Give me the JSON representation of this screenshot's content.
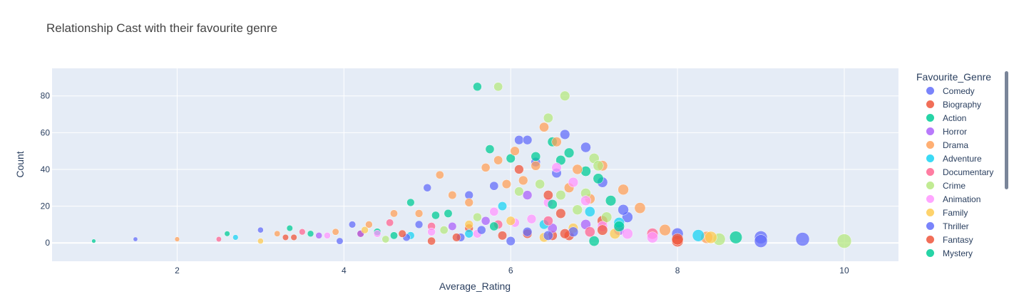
{
  "chart_data": {
    "type": "scatter",
    "title": "Relationship Cast with their favourite genre",
    "xlabel": "Average_Rating",
    "ylabel": "Count",
    "xlim": [
      0.5,
      10.65
    ],
    "ylim": [
      -10,
      95
    ],
    "xticks": [
      2,
      4,
      6,
      8,
      10
    ],
    "yticks": [
      0,
      20,
      40,
      60,
      80
    ],
    "grid": true,
    "legend": {
      "title": "Favourite_Genre",
      "placement": "right"
    },
    "marker_size_encodes": "Average_Rating",
    "series": [
      {
        "name": "Comedy",
        "color": "#636efa",
        "points": [
          [
            1.5,
            2
          ],
          [
            3,
            7
          ],
          [
            4.1,
            10
          ],
          [
            4.9,
            10
          ],
          [
            5,
            30
          ],
          [
            5.5,
            26
          ],
          [
            5.8,
            31
          ],
          [
            6.1,
            56
          ],
          [
            6.2,
            56
          ],
          [
            6.3,
            44
          ],
          [
            6.55,
            38
          ],
          [
            6.65,
            59
          ],
          [
            6.9,
            52
          ],
          [
            7.1,
            33
          ],
          [
            7.4,
            14
          ],
          [
            8,
            5
          ],
          [
            9,
            3
          ]
        ]
      },
      {
        "name": "Biography",
        "color": "#EF553B",
        "points": [
          [
            3.3,
            3
          ],
          [
            4.2,
            5
          ],
          [
            5.05,
            1
          ],
          [
            5.5,
            8
          ],
          [
            5.9,
            4
          ],
          [
            6.2,
            5
          ],
          [
            6.5,
            4
          ],
          [
            6.6,
            16
          ],
          [
            6.7,
            4
          ],
          [
            7.1,
            12
          ],
          [
            8,
            1
          ]
        ]
      },
      {
        "name": "Action",
        "color": "#00cc96",
        "points": [
          [
            1,
            1
          ],
          [
            2.6,
            5
          ],
          [
            3.6,
            5
          ],
          [
            4.4,
            6
          ],
          [
            4.8,
            22
          ],
          [
            5.1,
            15
          ],
          [
            5.6,
            85
          ],
          [
            5.75,
            51
          ],
          [
            6,
            46
          ],
          [
            6.3,
            47
          ],
          [
            6.5,
            55
          ],
          [
            6.6,
            45
          ],
          [
            6.7,
            49
          ],
          [
            6.9,
            39
          ],
          [
            7.0,
            1
          ],
          [
            7.2,
            23
          ]
        ]
      },
      {
        "name": "Horror",
        "color": "#ab63fa",
        "points": [
          [
            3.7,
            4
          ],
          [
            4.2,
            5
          ],
          [
            5.3,
            9
          ],
          [
            5.7,
            12
          ],
          [
            6.2,
            26
          ],
          [
            6.5,
            8
          ],
          [
            6.9,
            10
          ],
          [
            7.3,
            7
          ]
        ]
      },
      {
        "name": "Drama",
        "color": "#FFA15A",
        "points": [
          [
            2,
            2
          ],
          [
            3.2,
            5
          ],
          [
            3.9,
            6
          ],
          [
            4.3,
            10
          ],
          [
            4.6,
            16
          ],
          [
            4.9,
            16
          ],
          [
            5.15,
            37
          ],
          [
            5.3,
            26
          ],
          [
            5.5,
            22
          ],
          [
            5.7,
            41
          ],
          [
            5.85,
            45
          ],
          [
            5.95,
            32
          ],
          [
            6.05,
            50
          ],
          [
            6.15,
            34
          ],
          [
            6.3,
            42
          ],
          [
            6.4,
            63
          ],
          [
            6.55,
            55
          ],
          [
            6.7,
            30
          ],
          [
            6.8,
            40
          ],
          [
            6.95,
            24
          ],
          [
            7.1,
            42
          ],
          [
            7.35,
            29
          ],
          [
            7.55,
            19
          ],
          [
            7.85,
            7
          ],
          [
            8.35,
            3
          ]
        ]
      },
      {
        "name": "Adventure",
        "color": "#19d3f3",
        "points": [
          [
            2.7,
            3
          ],
          [
            4.8,
            4
          ],
          [
            5.5,
            5
          ],
          [
            5.9,
            20
          ],
          [
            6.4,
            10
          ],
          [
            6.95,
            17
          ],
          [
            7.3,
            11
          ],
          [
            8.25,
            4
          ]
        ]
      },
      {
        "name": "Documentary",
        "color": "#FF6692",
        "points": [
          [
            2.5,
            2
          ],
          [
            3.5,
            6
          ],
          [
            4.55,
            11
          ],
          [
            5.05,
            9
          ],
          [
            5.85,
            10
          ],
          [
            6.45,
            12
          ],
          [
            6.95,
            6
          ],
          [
            7.7,
            5
          ]
        ]
      },
      {
        "name": "Crime",
        "color": "#B6E880",
        "points": [
          [
            4.5,
            2
          ],
          [
            5.2,
            7
          ],
          [
            5.6,
            14
          ],
          [
            5.85,
            85
          ],
          [
            6.1,
            28
          ],
          [
            6.35,
            32
          ],
          [
            6.45,
            68
          ],
          [
            6.6,
            26
          ],
          [
            6.65,
            80
          ],
          [
            6.8,
            18
          ],
          [
            6.9,
            27
          ],
          [
            7.0,
            46
          ],
          [
            7.05,
            42
          ],
          [
            7.15,
            14
          ],
          [
            8.5,
            2
          ],
          [
            10,
            1
          ]
        ]
      },
      {
        "name": "Animation",
        "color": "#FF97FF",
        "points": [
          [
            3.8,
            4
          ],
          [
            4.4,
            5
          ],
          [
            5.05,
            6
          ],
          [
            5.6,
            5
          ],
          [
            5.8,
            17
          ],
          [
            6.05,
            11
          ],
          [
            6.25,
            13
          ],
          [
            6.45,
            22
          ],
          [
            6.55,
            41
          ],
          [
            6.75,
            33
          ],
          [
            6.9,
            23
          ],
          [
            7.1,
            9
          ],
          [
            7.4,
            5
          ],
          [
            7.7,
            3
          ]
        ]
      },
      {
        "name": "Family",
        "color": "#FECB52",
        "points": [
          [
            3,
            1
          ],
          [
            4.25,
            7
          ],
          [
            5.5,
            10
          ],
          [
            6.0,
            12
          ],
          [
            6.4,
            3
          ],
          [
            6.75,
            8
          ],
          [
            7.25,
            5
          ],
          [
            8.4,
            3
          ]
        ]
      },
      {
        "name": "Thriller",
        "color": "#636efa",
        "points": [
          [
            3.95,
            1
          ],
          [
            4.75,
            3
          ],
          [
            5.4,
            3
          ],
          [
            5.65,
            7
          ],
          [
            6.0,
            1
          ],
          [
            6.2,
            6
          ],
          [
            6.45,
            4
          ],
          [
            6.75,
            6
          ],
          [
            7.35,
            18
          ],
          [
            9,
            1
          ],
          [
            9.5,
            2
          ]
        ]
      },
      {
        "name": "Fantasy",
        "color": "#EF553B",
        "points": [
          [
            3.4,
            3
          ],
          [
            4.7,
            5
          ],
          [
            5.35,
            3
          ],
          [
            6.1,
            40
          ],
          [
            6.45,
            26
          ],
          [
            6.65,
            5
          ],
          [
            7.1,
            7
          ],
          [
            8,
            2
          ]
        ]
      },
      {
        "name": "Mystery",
        "color": "#00cc96",
        "points": [
          [
            3.35,
            8
          ],
          [
            4.6,
            4
          ],
          [
            5.25,
            16
          ],
          [
            5.8,
            9
          ],
          [
            6.5,
            21
          ],
          [
            7.05,
            35
          ],
          [
            7.3,
            9
          ],
          [
            8.7,
            3
          ]
        ]
      }
    ]
  }
}
